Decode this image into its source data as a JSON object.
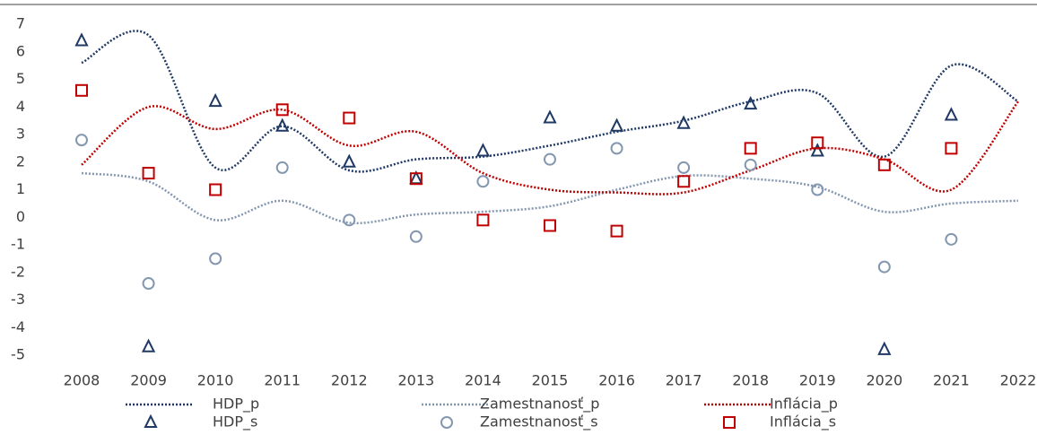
{
  "chart_data": {
    "type": "line",
    "categories": [
      "2008",
      "2009",
      "2010",
      "2011",
      "2012",
      "2013",
      "2014",
      "2015",
      "2016",
      "2017",
      "2018",
      "2019",
      "2020",
      "2021",
      "2022"
    ],
    "ylim": [
      -5,
      7
    ],
    "yticks": [
      -5,
      -4,
      -3,
      -2,
      -1,
      0,
      1,
      2,
      3,
      4,
      5,
      6,
      7
    ],
    "grid": false,
    "series": [
      {
        "name": "HDP_p",
        "color": "#1f3864",
        "marker": "line",
        "values": [
          5.6,
          6.6,
          1.8,
          3.3,
          1.7,
          2.1,
          2.2,
          2.6,
          3.1,
          3.5,
          4.2,
          4.5,
          2.2,
          5.5,
          4.2
        ]
      },
      {
        "name": "Zamestnanosť_p",
        "color": "#8497b0",
        "marker": "line",
        "values": [
          1.6,
          1.3,
          -0.1,
          0.6,
          -0.2,
          0.1,
          0.2,
          0.4,
          1.0,
          1.5,
          1.4,
          1.1,
          0.2,
          0.5,
          0.6
        ]
      },
      {
        "name": "Inflácia_p",
        "color": "#c00000",
        "marker": "line",
        "values": [
          1.9,
          4.0,
          3.2,
          3.9,
          2.6,
          3.1,
          1.6,
          1.0,
          0.9,
          0.9,
          1.7,
          2.5,
          2.1,
          1.0,
          4.2
        ]
      },
      {
        "name": "HDP_s",
        "color": "#1f3864",
        "marker": "triangle",
        "values": [
          6.4,
          -4.7,
          4.2,
          3.3,
          2.0,
          1.4,
          2.4,
          3.6,
          3.3,
          3.4,
          4.1,
          2.4,
          -4.8,
          3.7,
          null
        ]
      },
      {
        "name": "Zamestnanosť_s",
        "color": "#8497b0",
        "marker": "circle",
        "values": [
          2.8,
          -2.4,
          -1.5,
          1.8,
          -0.1,
          -0.7,
          1.3,
          2.1,
          2.5,
          1.8,
          1.9,
          1.0,
          -1.8,
          -0.8,
          null
        ]
      },
      {
        "name": "Inflácia_s",
        "color": "#c00000",
        "marker": "square",
        "values": [
          4.6,
          1.6,
          1.0,
          3.9,
          3.6,
          1.4,
          -0.1,
          -0.3,
          -0.5,
          1.3,
          2.5,
          2.7,
          1.9,
          2.5,
          null
        ]
      }
    ]
  }
}
